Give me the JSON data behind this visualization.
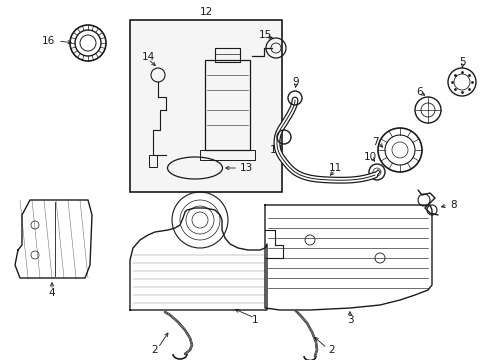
{
  "bg_color": "#ffffff",
  "line_color": "#1a1a1a",
  "fig_width": 4.89,
  "fig_height": 3.6,
  "dpi": 100,
  "label_fontsize": 7.5,
  "lw_main": 1.0,
  "lw_thick": 2.5
}
